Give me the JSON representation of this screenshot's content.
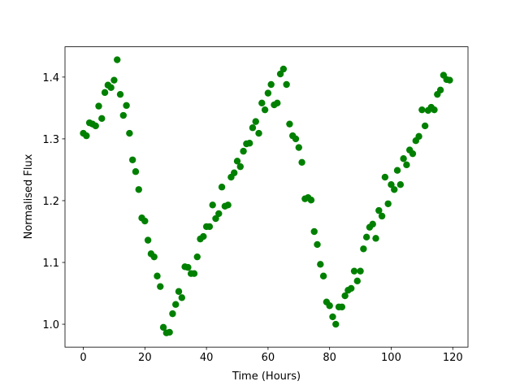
{
  "chart_data": {
    "type": "scatter",
    "x_label": "Time (Hours)",
    "y_label": "Normalised Flux",
    "x": [
      0,
      1,
      2,
      3,
      4,
      5,
      6,
      7,
      8,
      9,
      10,
      11,
      12,
      13,
      14,
      15,
      16,
      17,
      18,
      19,
      20,
      21,
      22,
      23,
      24,
      25,
      26,
      27,
      28,
      29,
      30,
      31,
      32,
      33,
      34,
      35,
      36,
      37,
      38,
      39,
      40,
      41,
      42,
      43,
      44,
      45,
      46,
      47,
      48,
      49,
      50,
      51,
      52,
      53,
      54,
      55,
      56,
      57,
      58,
      59,
      60,
      61,
      62,
      63,
      64,
      65,
      66,
      67,
      68,
      69,
      70,
      71,
      72,
      73,
      74,
      75,
      76,
      77,
      78,
      79,
      80,
      81,
      82,
      83,
      84,
      85,
      86,
      87,
      88,
      89,
      90,
      91,
      92,
      93,
      94,
      95,
      96,
      97,
      98,
      99,
      100,
      101,
      102,
      103,
      104,
      105,
      106,
      107,
      108,
      109,
      110,
      111,
      112,
      113,
      114,
      115,
      116,
      117,
      118,
      119
    ],
    "values": [
      1.309,
      1.305,
      1.326,
      1.324,
      1.321,
      1.353,
      1.333,
      1.375,
      1.387,
      1.383,
      1.395,
      1.428,
      1.372,
      1.338,
      1.354,
      1.309,
      1.266,
      1.247,
      1.218,
      1.172,
      1.167,
      1.136,
      1.114,
      1.109,
      1.078,
      1.061,
      0.995,
      0.986,
      0.987,
      1.017,
      1.032,
      1.053,
      1.043,
      1.093,
      1.092,
      1.082,
      1.082,
      1.109,
      1.138,
      1.142,
      1.158,
      1.158,
      1.193,
      1.171,
      1.179,
      1.222,
      1.191,
      1.193,
      1.238,
      1.245,
      1.264,
      1.255,
      1.28,
      1.292,
      1.293,
      1.318,
      1.328,
      1.309,
      1.358,
      1.347,
      1.374,
      1.388,
      1.355,
      1.358,
      1.405,
      1.413,
      1.388,
      1.324,
      1.305,
      1.3,
      1.286,
      1.262,
      1.203,
      1.205,
      1.201,
      1.15,
      1.129,
      1.097,
      1.078,
      1.036,
      1.03,
      1.012,
      1.0,
      1.028,
      1.028,
      1.046,
      1.055,
      1.058,
      1.086,
      1.07,
      1.086,
      1.122,
      1.141,
      1.157,
      1.162,
      1.139,
      1.184,
      1.175,
      1.238,
      1.195,
      1.226,
      1.218,
      1.249,
      1.226,
      1.268,
      1.258,
      1.282,
      1.276,
      1.297,
      1.304,
      1.347,
      1.321,
      1.346,
      1.351,
      1.347,
      1.372,
      1.379,
      1.403,
      1.396,
      1.395
    ],
    "color": "#008000",
    "xlim": [
      -5.95,
      124.95
    ],
    "xticks": [
      0,
      20,
      40,
      60,
      80,
      100,
      120
    ],
    "ylim": [
      0.963,
      1.449
    ],
    "yticks": [
      {
        "value": 1,
        "label": "1.0"
      },
      1.1,
      1.2,
      1.3,
      1.4
    ],
    "grid": false
  }
}
